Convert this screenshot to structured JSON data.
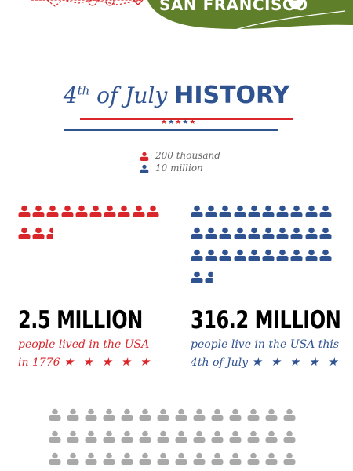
{
  "banner": {
    "text": "SAN FRANCISCO",
    "color": "#5f7f2a"
  },
  "title": {
    "light": "4",
    "sup": "th",
    "light_rest": " of July ",
    "bold": "HISTORY"
  },
  "legend": [
    {
      "icon": "person-icon",
      "color": "#d9262a",
      "label": "200 thousand"
    },
    {
      "icon": "person-icon",
      "color": "#2f5290",
      "label": "10 million"
    }
  ],
  "stat_1776": {
    "value": "2.5 MILLION",
    "line1": "people lived in the USA",
    "line2": "in 1776",
    "stars": "★ ★ ★ ★ ★",
    "icon_count": 12.5,
    "color": "#d9262a"
  },
  "stat_today": {
    "value": "316.2 MILLION",
    "line1": "people live in the USA this",
    "line2": "4th of July",
    "stars": "★ ★ ★ ★ ★",
    "icon_count": 31.62,
    "color": "#2f5290"
  },
  "title_stars": "★★★★★",
  "colors": {
    "red": "#d9262a",
    "blue": "#2f5290",
    "gray": "#a9a9a9"
  }
}
